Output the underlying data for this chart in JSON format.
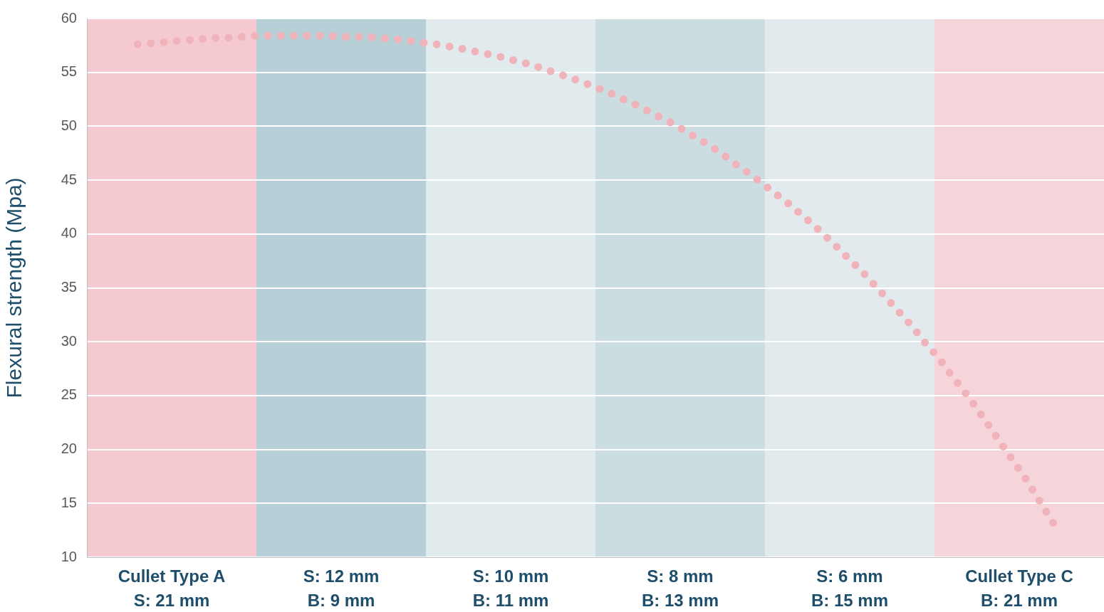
{
  "chart_data": {
    "type": "line",
    "ylabel": "Flexural strength (Mpa)",
    "categories": [
      null,
      null,
      null,
      null,
      null,
      null,
      null,
      null,
      null,
      null,
      null,
      null,
      null,
      null,
      null,
      null,
      null,
      null,
      null,
      null,
      null,
      null,
      null,
      null,
      null,
      null,
      null,
      null,
      null,
      null,
      null,
      null,
      null,
      null,
      null,
      null,
      null,
      null,
      null,
      null,
      null,
      null,
      null,
      null,
      null,
      null,
      null,
      null,
      null,
      null,
      null,
      null,
      null,
      null,
      null,
      null,
      null,
      null,
      null,
      null,
      null,
      null,
      null,
      null,
      null,
      null,
      null,
      null,
      null,
      null,
      null,
      null,
      null,
      null,
      null,
      null,
      null,
      null,
      null,
      null,
      null
    ],
    "ylim": [
      10,
      60
    ],
    "yticks": [
      10,
      15,
      20,
      25,
      30,
      35,
      40,
      45,
      50,
      55,
      60
    ],
    "tick_labels": "y",
    "grid": "y",
    "marker": "none",
    "line_style": "dotted",
    "series": [
      {
        "color": "#f0b3ba",
        "values": [
          null,
          null,
          null,
          null,
          57.6,
          57.7,
          57.8,
          57.9,
          58.0,
          58.1,
          58.2,
          58.2,
          58.3,
          58.4,
          58.4,
          58.4,
          58.4,
          58.4,
          58.4,
          58.4,
          58.3,
          58.3,
          58.3,
          58.2,
          58.1,
          58.0,
          57.8,
          57.7,
          57.5,
          57.3,
          57.1,
          56.8,
          56.6,
          56.3,
          56.0,
          55.7,
          55.3,
          54.9,
          54.5,
          54.1,
          53.6,
          53.2,
          52.6,
          52.1,
          51.5,
          50.9,
          50.3,
          49.6,
          48.9,
          48.2,
          47.4,
          46.5,
          45.7,
          44.8,
          43.9,
          43.0,
          42.0,
          41.0,
          39.9,
          38.8,
          37.6,
          36.5,
          35.2,
          33.9,
          32.6,
          31.3,
          29.8,
          28.5,
          26.9,
          25.4,
          23.8,
          22.1,
          20.4,
          18.7,
          17.0,
          15.1,
          13.2,
          null,
          null,
          null,
          null
        ]
      }
    ],
    "annotations": [
      "Cullet Type A\nS: 21 mm",
      "S: 12 mm\nB: 9 mm",
      "S: 10 mm\nB: 11 mm",
      "S: 8 mm\nB: 13 mm",
      "S: 6 mm\nB: 15 mm",
      "Cullet Type C\nB: 21 mm"
    ]
  }
}
